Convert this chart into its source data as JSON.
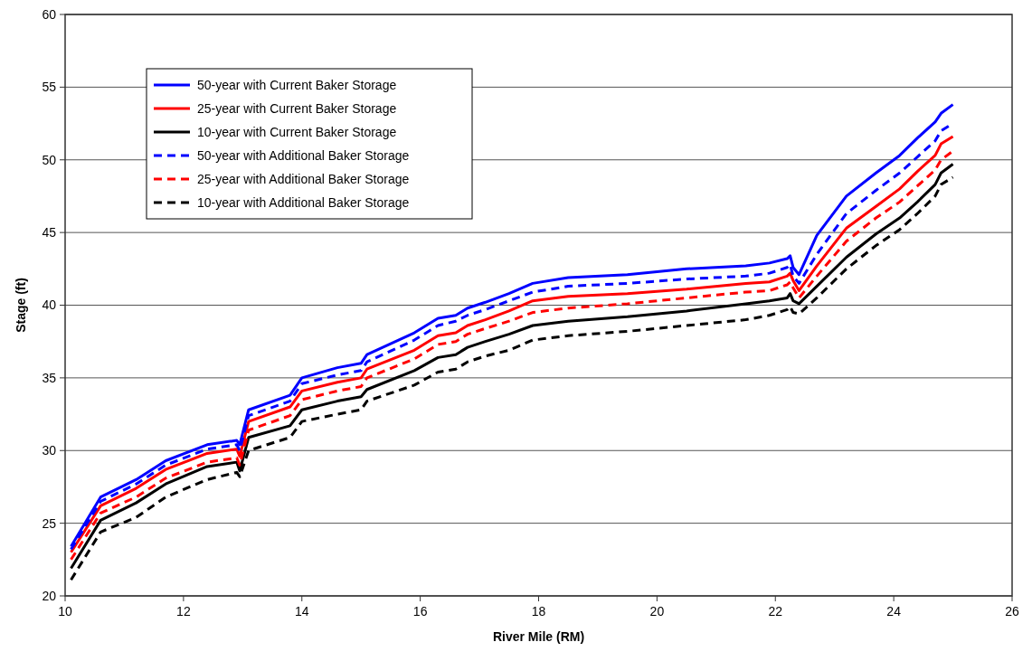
{
  "chart_data": {
    "type": "line",
    "xlabel": "River Mile (RM)",
    "ylabel": "Stage (ft)",
    "xlim": [
      10,
      26
    ],
    "xticks": [
      10,
      12,
      14,
      16,
      18,
      20,
      22,
      24,
      26
    ],
    "ylim": [
      20,
      60
    ],
    "yticks": [
      20,
      25,
      30,
      35,
      40,
      45,
      50,
      55,
      60
    ],
    "grid": "y",
    "legend": "top left",
    "marker": "none",
    "x": [
      10.1,
      10.6,
      11.2,
      11.7,
      12.4,
      12.9,
      12.95,
      13.1,
      13.8,
      14.0,
      14.6,
      15.0,
      15.1,
      15.9,
      16.3,
      16.6,
      16.8,
      17.1,
      17.5,
      17.9,
      18.5,
      19.5,
      20.5,
      21.5,
      21.9,
      22.2,
      22.25,
      22.3,
      22.4,
      22.7,
      23.2,
      23.7,
      24.1,
      24.4,
      24.7,
      24.8,
      25.0
    ],
    "series": [
      {
        "name": "50-year with Current Baker Storage",
        "color": "#0000ff",
        "line_style": "solid",
        "values": [
          23.4,
          26.8,
          28.0,
          29.3,
          30.4,
          30.7,
          30.4,
          32.8,
          33.8,
          35.0,
          35.7,
          36.0,
          36.6,
          38.1,
          39.1,
          39.3,
          39.8,
          40.2,
          40.8,
          41.5,
          41.9,
          42.1,
          42.5,
          42.7,
          42.9,
          43.2,
          43.4,
          42.6,
          42.1,
          44.8,
          47.5,
          49.1,
          50.3,
          51.5,
          52.6,
          53.2,
          53.8
        ]
      },
      {
        "name": "25-year with Current Baker Storage",
        "color": "#ff0000",
        "line_style": "solid",
        "values": [
          23.0,
          26.2,
          27.4,
          28.7,
          29.8,
          30.1,
          29.6,
          32.0,
          33.0,
          34.1,
          34.7,
          35.0,
          35.6,
          36.9,
          37.9,
          38.1,
          38.6,
          39.0,
          39.6,
          40.3,
          40.6,
          40.8,
          41.1,
          41.5,
          41.6,
          42.0,
          42.2,
          41.7,
          41.0,
          42.7,
          45.3,
          46.8,
          48.0,
          49.2,
          50.3,
          51.1,
          51.6
        ]
      },
      {
        "name": "10-year with Current Baker Storage",
        "color": "#000000",
        "line_style": "solid",
        "values": [
          21.9,
          25.2,
          26.4,
          27.7,
          28.9,
          29.2,
          28.6,
          30.9,
          31.7,
          32.8,
          33.4,
          33.7,
          34.2,
          35.5,
          36.4,
          36.6,
          37.1,
          37.5,
          38.0,
          38.6,
          38.9,
          39.2,
          39.6,
          40.1,
          40.3,
          40.5,
          40.8,
          40.3,
          40.1,
          41.3,
          43.3,
          44.9,
          46.0,
          47.1,
          48.3,
          49.1,
          49.7
        ]
      },
      {
        "name": "50-year with Additional Baker Storage",
        "color": "#0000ff",
        "line_style": "dashed",
        "values": [
          23.2,
          26.5,
          27.7,
          29.0,
          30.1,
          30.4,
          30.0,
          32.4,
          33.4,
          34.6,
          35.2,
          35.5,
          36.1,
          37.6,
          38.6,
          38.9,
          39.3,
          39.7,
          40.3,
          40.9,
          41.3,
          41.5,
          41.8,
          42.0,
          42.2,
          42.6,
          42.8,
          42.0,
          41.5,
          43.5,
          46.3,
          47.9,
          49.1,
          50.2,
          51.3,
          52.0,
          52.5
        ]
      },
      {
        "name": "25-year with Additional Baker Storage",
        "color": "#ff0000",
        "line_style": "dashed",
        "values": [
          22.5,
          25.7,
          26.8,
          28.1,
          29.2,
          29.5,
          29.0,
          31.4,
          32.4,
          33.5,
          34.1,
          34.4,
          35.0,
          36.3,
          37.3,
          37.5,
          38.0,
          38.4,
          38.9,
          39.5,
          39.8,
          40.1,
          40.5,
          40.9,
          41.0,
          41.4,
          41.6,
          41.2,
          40.5,
          42.0,
          44.4,
          46.0,
          47.1,
          48.2,
          49.3,
          50.0,
          50.6
        ]
      },
      {
        "name": "10-year with Additional Baker Storage",
        "color": "#000000",
        "line_style": "dashed",
        "values": [
          21.1,
          24.4,
          25.4,
          26.8,
          28.0,
          28.5,
          28.2,
          30.0,
          30.9,
          32.0,
          32.5,
          32.8,
          33.4,
          34.5,
          35.4,
          35.6,
          36.1,
          36.5,
          36.9,
          37.6,
          37.9,
          38.2,
          38.6,
          39.0,
          39.3,
          39.7,
          39.9,
          39.5,
          39.4,
          40.5,
          42.5,
          44.1,
          45.2,
          46.3,
          47.5,
          48.3,
          48.8
        ]
      }
    ]
  }
}
